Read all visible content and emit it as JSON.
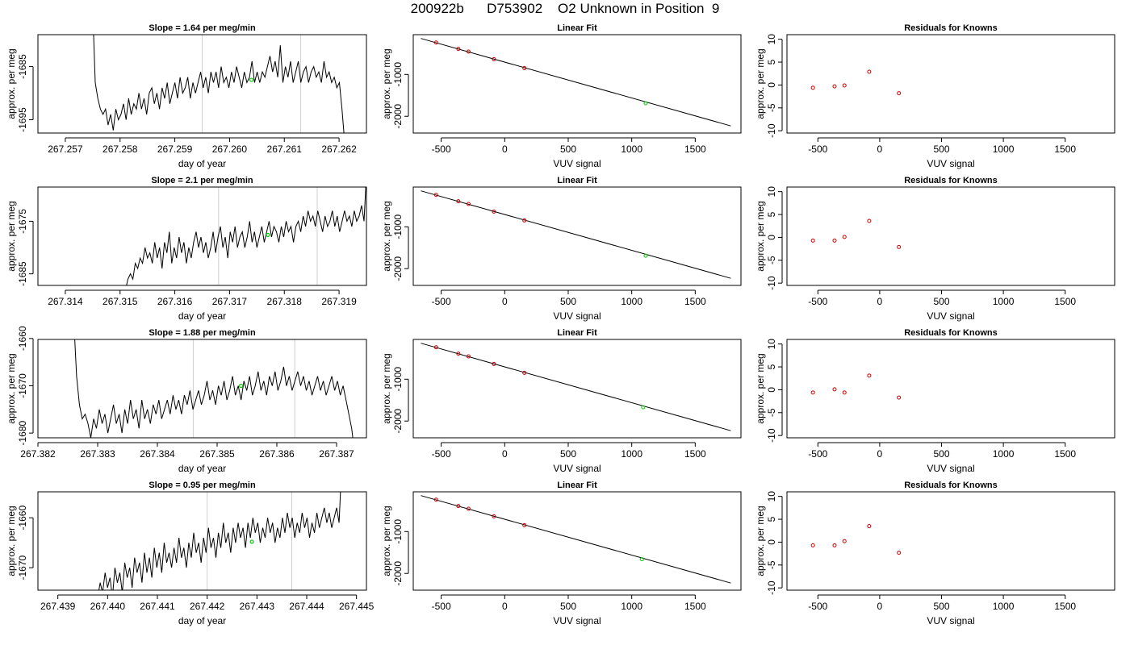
{
  "figure": {
    "title": "200922b      D753902    O2 Unknown in Position  9"
  },
  "chart_data": [
    {
      "type": "line",
      "row": 1,
      "panel": "timeseries",
      "title": "Slope =  1.64  per meg/min",
      "xlabel": "day of year",
      "ylabel": "approx. per meg",
      "xlim": [
        267.2565,
        267.2625
      ],
      "ylim": [
        -1697.5,
        -1679.0
      ],
      "xticks": [
        267.257,
        267.258,
        267.259,
        267.26,
        267.261,
        267.262
      ],
      "xtick_labels": [
        "267.257",
        "267.258",
        "267.259",
        "267.260",
        "267.261",
        "267.262"
      ],
      "yticks": [
        -1695,
        -1685
      ],
      "ytick_labels": [
        "-1695",
        "-1685"
      ],
      "vlines": [
        267.2595,
        267.2613
      ],
      "marker": {
        "x": 267.2604,
        "y": -1687.5,
        "color": "#00cc00"
      },
      "series_x_range": [
        267.2575,
        267.2621
      ],
      "series": [
        {
          "values": [
            -1674,
            -1688,
            -1691,
            -1693,
            -1694,
            -1693,
            -1696,
            -1694,
            -1697,
            -1693,
            -1695,
            -1694,
            -1692,
            -1695,
            -1691,
            -1694,
            -1692,
            -1693,
            -1690,
            -1693,
            -1691,
            -1694,
            -1690,
            -1689,
            -1692,
            -1690,
            -1693,
            -1689,
            -1691,
            -1688,
            -1692,
            -1690,
            -1688,
            -1691,
            -1687,
            -1690,
            -1689,
            -1687,
            -1691,
            -1688,
            -1690,
            -1688,
            -1686,
            -1689,
            -1687,
            -1690,
            -1686,
            -1688,
            -1686,
            -1689,
            -1685,
            -1688,
            -1687,
            -1689,
            -1686,
            -1688,
            -1685,
            -1687,
            -1689,
            -1686,
            -1688,
            -1687,
            -1684,
            -1688,
            -1686,
            -1688,
            -1686,
            -1687,
            -1685,
            -1683,
            -1686,
            -1684,
            -1687,
            -1681,
            -1688,
            -1685,
            -1687,
            -1684,
            -1688,
            -1686,
            -1684,
            -1688,
            -1686,
            -1685,
            -1688,
            -1686,
            -1685,
            -1687,
            -1686,
            -1688,
            -1684,
            -1687,
            -1686,
            -1688,
            -1687,
            -1689,
            -1688,
            -1693,
            -1699
          ]
        }
      ]
    },
    {
      "type": "line",
      "row": 1,
      "panel": "fit",
      "title": "Linear Fit",
      "xlabel": "VUV signal",
      "ylabel": "approx. per meg",
      "xlim": [
        -720,
        1860
      ],
      "ylim": [
        -2400,
        -50
      ],
      "xticks": [
        -500,
        0,
        500,
        1000,
        1500
      ],
      "xtick_labels": [
        "-500",
        "0",
        "500",
        "1000",
        "1500"
      ],
      "yticks": [
        -1000,
        -2000
      ],
      "ytick_labels": [
        "-1000",
        "-2000"
      ],
      "fit_line": {
        "x": [
          -660,
          1780
        ],
        "y": [
          -140,
          -2230
        ]
      },
      "knowns": {
        "x": [
          -540,
          -365,
          -285,
          -85,
          155
        ],
        "y": [
          -238,
          -389,
          -455,
          -636,
          -848
        ]
      },
      "unknown": {
        "x": 1110,
        "y": -1690
      },
      "known_color": "#cc0000",
      "unknown_color": "#00cc00"
    },
    {
      "type": "scatter",
      "row": 1,
      "panel": "residuals",
      "title": "Residuals for Knowns",
      "xlabel": "VUV signal",
      "ylabel": "approx. per meg",
      "xlim": [
        -750,
        1900
      ],
      "ylim": [
        -10.5,
        11
      ],
      "xticks": [
        -500,
        0,
        500,
        1000,
        1500
      ],
      "xtick_labels": [
        "-500",
        "0",
        "500",
        "1000",
        "1500"
      ],
      "yticks": [
        -10,
        -5,
        0,
        5,
        10
      ],
      "ytick_labels": [
        "-10",
        "-5",
        "0",
        "5",
        "10"
      ],
      "x": [
        -540,
        -365,
        -285,
        -85,
        155
      ],
      "y": [
        -0.6,
        -0.3,
        -0.1,
        2.9,
        -1.8
      ],
      "point_color": "#cc0000"
    },
    {
      "type": "line",
      "row": 2,
      "panel": "timeseries",
      "title": "Slope =  2.1  per meg/min",
      "xlabel": "day of year",
      "ylabel": "approx. per meg",
      "xlim": [
        267.3135,
        267.3195
      ],
      "ylim": [
        -1687.2,
        -1668.5
      ],
      "xticks": [
        267.314,
        267.315,
        267.316,
        267.317,
        267.318,
        267.319
      ],
      "xtick_labels": [
        "267.314",
        "267.315",
        "267.316",
        "267.317",
        "267.318",
        "267.319"
      ],
      "yticks": [
        -1685,
        -1675
      ],
      "ytick_labels": [
        "-1685",
        "-1675"
      ],
      "vlines": [
        267.3168,
        267.3186
      ],
      "marker": {
        "x": 267.3177,
        "y": -1677.6,
        "color": "#00cc00"
      },
      "series_x_range": [
        267.3151,
        267.3195
      ],
      "series": [
        {
          "values": [
            -1688,
            -1686,
            -1685,
            -1686,
            -1683,
            -1684,
            -1682,
            -1683,
            -1680,
            -1682,
            -1681,
            -1683,
            -1679,
            -1682,
            -1680,
            -1684,
            -1679,
            -1681,
            -1677,
            -1683,
            -1680,
            -1682,
            -1678,
            -1681,
            -1679,
            -1683,
            -1680,
            -1682,
            -1679,
            -1677,
            -1680,
            -1678,
            -1681,
            -1679,
            -1682,
            -1680,
            -1677,
            -1681,
            -1678,
            -1676,
            -1680,
            -1678,
            -1682,
            -1677,
            -1679,
            -1676,
            -1680,
            -1678,
            -1677,
            -1680,
            -1678,
            -1675,
            -1679,
            -1677,
            -1680,
            -1678,
            -1676,
            -1679,
            -1677,
            -1675,
            -1678,
            -1676,
            -1677,
            -1679,
            -1676,
            -1678,
            -1675,
            -1677,
            -1676,
            -1679,
            -1676,
            -1675,
            -1677,
            -1674,
            -1676,
            -1673,
            -1675,
            -1674,
            -1676,
            -1673,
            -1675,
            -1677,
            -1674,
            -1676,
            -1675,
            -1673,
            -1676,
            -1674,
            -1677,
            -1675,
            -1673,
            -1675,
            -1674,
            -1676,
            -1673,
            -1675,
            -1674,
            -1672,
            -1675,
            -1666
          ]
        }
      ]
    },
    {
      "type": "line",
      "row": 2,
      "panel": "fit",
      "title": "Linear Fit",
      "xlabel": "VUV signal",
      "ylabel": "approx. per meg",
      "xlim": [
        -720,
        1860
      ],
      "ylim": [
        -2400,
        -50
      ],
      "xticks": [
        -500,
        0,
        500,
        1000,
        1500
      ],
      "xtick_labels": [
        "-500",
        "0",
        "500",
        "1000",
        "1500"
      ],
      "yticks": [
        -1000,
        -2000
      ],
      "ytick_labels": [
        "-1000",
        "-2000"
      ],
      "fit_line": {
        "x": [
          -660,
          1780
        ],
        "y": [
          -140,
          -2230
        ]
      },
      "knowns": {
        "x": [
          -540,
          -365,
          -285,
          -85,
          155
        ],
        "y": [
          -238,
          -389,
          -455,
          -636,
          -848
        ]
      },
      "unknown": {
        "x": 1110,
        "y": -1690
      },
      "known_color": "#cc0000",
      "unknown_color": "#00cc00"
    },
    {
      "type": "scatter",
      "row": 2,
      "panel": "residuals",
      "title": "Residuals for Knowns",
      "xlabel": "VUV signal",
      "ylabel": "approx. per meg",
      "xlim": [
        -750,
        1900
      ],
      "ylim": [
        -10.5,
        11
      ],
      "xticks": [
        -500,
        0,
        500,
        1000,
        1500
      ],
      "xtick_labels": [
        "-500",
        "0",
        "500",
        "1000",
        "1500"
      ],
      "yticks": [
        -10,
        -5,
        0,
        5,
        10
      ],
      "ytick_labels": [
        "-10",
        "-5",
        "0",
        "5",
        "10"
      ],
      "x": [
        -540,
        -365,
        -285,
        -85,
        155
      ],
      "y": [
        -0.7,
        -0.7,
        0.1,
        3.6,
        -2.1
      ],
      "point_color": "#cc0000"
    },
    {
      "type": "line",
      "row": 3,
      "panel": "timeseries",
      "title": "Slope =  1.88  per meg/min",
      "xlabel": "day of year",
      "ylabel": "approx. per meg",
      "xlim": [
        267.382,
        267.3875
      ],
      "ylim": [
        -1681.0,
        -1660.2
      ],
      "xticks": [
        267.382,
        267.383,
        267.384,
        267.385,
        267.386,
        267.387
      ],
      "xtick_labels": [
        "267.382",
        "267.383",
        "267.384",
        "267.385",
        "267.386",
        "267.387"
      ],
      "yticks": [
        -1680,
        -1670,
        -1660
      ],
      "ytick_labels": [
        "-1680",
        "-1670",
        "-1660"
      ],
      "vlines": [
        267.3846,
        267.3863
      ],
      "marker": {
        "x": 267.3854,
        "y": -1670.0,
        "color": "#00cc00"
      },
      "series_x_range": [
        267.3826,
        267.3873
      ],
      "series": [
        {
          "values": [
            -1656,
            -1668,
            -1674,
            -1677,
            -1676,
            -1678,
            -1681,
            -1677,
            -1679,
            -1675,
            -1678,
            -1676,
            -1680,
            -1677,
            -1674,
            -1678,
            -1676,
            -1680,
            -1675,
            -1678,
            -1673,
            -1677,
            -1675,
            -1679,
            -1673,
            -1677,
            -1675,
            -1678,
            -1674,
            -1676,
            -1673,
            -1677,
            -1675,
            -1673,
            -1676,
            -1672,
            -1675,
            -1673,
            -1676,
            -1672,
            -1674,
            -1671,
            -1675,
            -1673,
            -1671,
            -1674,
            -1672,
            -1669,
            -1673,
            -1671,
            -1674,
            -1670,
            -1672,
            -1669,
            -1673,
            -1671,
            -1668,
            -1672,
            -1670,
            -1673,
            -1669,
            -1671,
            -1668,
            -1672,
            -1670,
            -1667,
            -1671,
            -1669,
            -1672,
            -1668,
            -1670,
            -1667,
            -1671,
            -1669,
            -1666,
            -1670,
            -1668,
            -1671,
            -1669,
            -1667,
            -1670,
            -1668,
            -1671,
            -1669,
            -1672,
            -1670,
            -1668,
            -1671,
            -1669,
            -1672,
            -1670,
            -1668,
            -1671,
            -1669,
            -1672,
            -1670,
            -1673,
            -1676,
            -1679,
            -1684
          ]
        }
      ]
    },
    {
      "type": "line",
      "row": 3,
      "panel": "fit",
      "title": "Linear Fit",
      "xlabel": "VUV signal",
      "ylabel": "approx. per meg",
      "xlim": [
        -720,
        1860
      ],
      "ylim": [
        -2400,
        -50
      ],
      "xticks": [
        -500,
        0,
        500,
        1000,
        1500
      ],
      "xtick_labels": [
        "-500",
        "0",
        "500",
        "1000",
        "1500"
      ],
      "yticks": [
        -1000,
        -2000
      ],
      "ytick_labels": [
        "-1000",
        "-2000"
      ],
      "fit_line": {
        "x": [
          -660,
          1780
        ],
        "y": [
          -140,
          -2230
        ]
      },
      "knowns": {
        "x": [
          -540,
          -365,
          -285,
          -85,
          155
        ],
        "y": [
          -238,
          -389,
          -455,
          -636,
          -848
        ]
      },
      "unknown": {
        "x": 1090,
        "y": -1670
      },
      "known_color": "#cc0000",
      "unknown_color": "#00cc00"
    },
    {
      "type": "scatter",
      "row": 3,
      "panel": "residuals",
      "title": "Residuals for Knowns",
      "xlabel": "VUV signal",
      "ylabel": "approx. per meg",
      "xlim": [
        -750,
        1900
      ],
      "ylim": [
        -10.5,
        11
      ],
      "xticks": [
        -500,
        0,
        500,
        1000,
        1500
      ],
      "xtick_labels": [
        "-500",
        "0",
        "500",
        "1000",
        "1500"
      ],
      "yticks": [
        -10,
        -5,
        0,
        5,
        10
      ],
      "ytick_labels": [
        "-10",
        "-5",
        "0",
        "5",
        "10"
      ],
      "x": [
        -540,
        -365,
        -285,
        -85,
        155
      ],
      "y": [
        -0.6,
        0.1,
        -0.6,
        3.1,
        -1.7
      ],
      "point_color": "#cc0000"
    },
    {
      "type": "line",
      "row": 4,
      "panel": "timeseries",
      "title": "Slope =  0.95  per meg/min",
      "xlabel": "day of year",
      "ylabel": "approx. per meg",
      "xlim": [
        267.4386,
        267.4452
      ],
      "ylim": [
        -1674.5,
        -1654.8
      ],
      "xticks": [
        267.439,
        267.44,
        267.441,
        267.442,
        267.443,
        267.444,
        267.445
      ],
      "xtick_labels": [
        "267.439",
        "267.440",
        "267.441",
        "267.442",
        "267.443",
        "267.444",
        "267.445"
      ],
      "yticks": [
        -1670,
        -1660
      ],
      "ytick_labels": [
        "-1670",
        "-1660"
      ],
      "vlines": [
        267.442,
        267.4437
      ],
      "marker": {
        "x": 267.4429,
        "y": -1664.8,
        "color": "#00cc00"
      },
      "series_x_range": [
        267.4398,
        267.4447
      ],
      "series": [
        {
          "values": [
            -1676,
            -1673,
            -1675,
            -1671,
            -1674,
            -1672,
            -1676,
            -1670,
            -1673,
            -1671,
            -1675,
            -1669,
            -1672,
            -1670,
            -1674,
            -1668,
            -1671,
            -1669,
            -1673,
            -1667,
            -1671,
            -1668,
            -1672,
            -1666,
            -1670,
            -1667,
            -1671,
            -1665,
            -1669,
            -1667,
            -1670,
            -1666,
            -1669,
            -1664,
            -1668,
            -1666,
            -1670,
            -1665,
            -1668,
            -1663,
            -1667,
            -1665,
            -1669,
            -1664,
            -1667,
            -1662,
            -1666,
            -1664,
            -1668,
            -1663,
            -1666,
            -1661,
            -1665,
            -1663,
            -1667,
            -1662,
            -1665,
            -1661,
            -1664,
            -1662,
            -1666,
            -1661,
            -1664,
            -1660,
            -1663,
            -1661,
            -1665,
            -1662,
            -1664,
            -1660,
            -1663,
            -1661,
            -1665,
            -1662,
            -1664,
            -1660,
            -1663,
            -1659,
            -1662,
            -1660,
            -1664,
            -1661,
            -1663,
            -1659,
            -1662,
            -1660,
            -1664,
            -1661,
            -1663,
            -1659,
            -1662,
            -1660,
            -1658,
            -1661,
            -1659,
            -1662,
            -1660,
            -1658,
            -1661,
            -1650
          ]
        }
      ]
    },
    {
      "type": "line",
      "row": 4,
      "panel": "fit",
      "title": "Linear Fit",
      "xlabel": "VUV signal",
      "ylabel": "approx. per meg",
      "xlim": [
        -720,
        1860
      ],
      "ylim": [
        -2400,
        -50
      ],
      "xticks": [
        -500,
        0,
        500,
        1000,
        1500
      ],
      "xtick_labels": [
        "-500",
        "0",
        "500",
        "1000",
        "1500"
      ],
      "yticks": [
        -1000,
        -2000
      ],
      "ytick_labels": [
        "-1000",
        "-2000"
      ],
      "fit_line": {
        "x": [
          -660,
          1780
        ],
        "y": [
          -140,
          -2230
        ]
      },
      "knowns": {
        "x": [
          -540,
          -365,
          -285,
          -85,
          155
        ],
        "y": [
          -238,
          -389,
          -455,
          -636,
          -848
        ]
      },
      "unknown": {
        "x": 1080,
        "y": -1660
      },
      "known_color": "#cc0000",
      "unknown_color": "#00cc00"
    },
    {
      "type": "scatter",
      "row": 4,
      "panel": "residuals",
      "title": "Residuals for Knowns",
      "xlabel": "VUV signal",
      "ylabel": "approx. per meg",
      "xlim": [
        -750,
        1900
      ],
      "ylim": [
        -10.5,
        11
      ],
      "xticks": [
        -500,
        0,
        500,
        1000,
        1500
      ],
      "xtick_labels": [
        "-500",
        "0",
        "500",
        "1000",
        "1500"
      ],
      "yticks": [
        -10,
        -5,
        0,
        5,
        10
      ],
      "ytick_labels": [
        "-10",
        "-5",
        "0",
        "5",
        "10"
      ],
      "x": [
        -540,
        -365,
        -285,
        -85,
        155
      ],
      "y": [
        -0.7,
        -0.7,
        0.2,
        3.5,
        -2.3
      ],
      "point_color": "#cc0000"
    }
  ]
}
